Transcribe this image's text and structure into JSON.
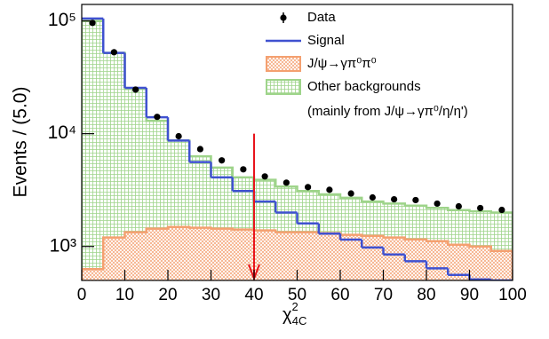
{
  "chart_data": {
    "type": "histogram",
    "xlabel": {
      "base": "χ",
      "sup": "2",
      "sub": "4C"
    },
    "ylabel": "Events / (5.0)",
    "bins": [
      0,
      5,
      10,
      15,
      20,
      25,
      30,
      35,
      40,
      45,
      50,
      55,
      60,
      65,
      70,
      75,
      80,
      85,
      90,
      95,
      100
    ],
    "xlim": [
      0,
      100
    ],
    "xticks": [
      0,
      10,
      20,
      30,
      40,
      50,
      60,
      70,
      80,
      90,
      100
    ],
    "ylim": [
      500,
      140000
    ],
    "log_y": true,
    "yticks": [
      {
        "value": 1000,
        "label": "10³"
      },
      {
        "value": 10000,
        "label": "10⁴"
      },
      {
        "value": 100000,
        "label": "10⁵"
      }
    ],
    "series": [
      {
        "name": "Other backgrounds",
        "style": "filled",
        "color": "#9ed48a",
        "values": [
          100000,
          52000,
          25000,
          13000,
          8700,
          6300,
          5000,
          4100,
          3900,
          3400,
          3100,
          2900,
          2700,
          2500,
          2400,
          2300,
          2200,
          2100,
          2050,
          2000
        ]
      },
      {
        "name": "J/ψ→γπ⁰π⁰",
        "style": "filled",
        "color": "#f4a070",
        "values": [
          630,
          1200,
          1340,
          1440,
          1490,
          1466,
          1440,
          1413,
          1388,
          1338,
          1338,
          1314,
          1267,
          1244,
          1200,
          1157,
          1115,
          1037,
          1000,
          913
        ]
      },
      {
        "name": "Signal",
        "style": "line",
        "color": "#3f51d0",
        "values": [
          105000,
          52000,
          25500,
          14000,
          8700,
          5600,
          4100,
          3100,
          2500,
          2000,
          1600,
          1300,
          1150,
          980,
          850,
          740,
          640,
          560,
          510,
          500
        ]
      },
      {
        "name": "Data",
        "style": "points",
        "color": "#000000",
        "values": [
          96000,
          52800,
          24600,
          14100,
          9500,
          7300,
          5800,
          4830,
          4180,
          3680,
          3360,
          3180,
          2950,
          2720,
          2620,
          2580,
          2400,
          2270,
          2190,
          2110
        ]
      }
    ],
    "legend_note": "(mainly from J/ψ→γπ⁰/η/η')",
    "cut": {
      "x": 40,
      "y_top": 10000,
      "color": "#e8141c"
    }
  }
}
